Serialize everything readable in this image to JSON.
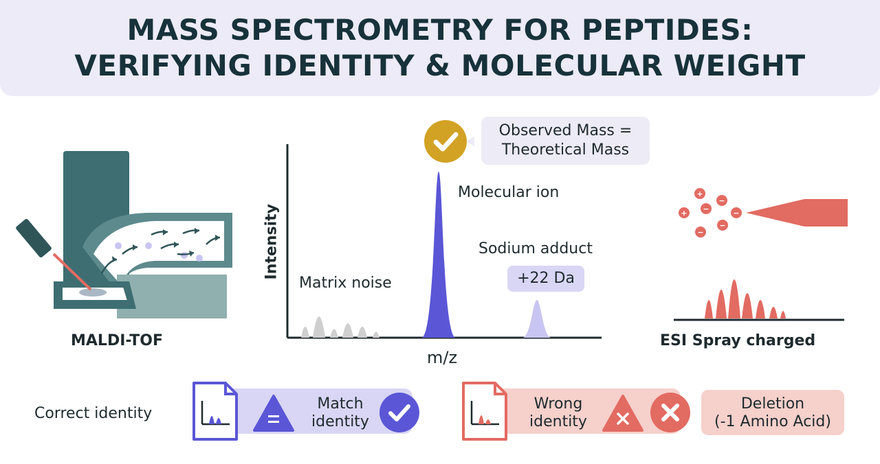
{
  "header": {
    "title_line1": "MASS SPECTROMETRY FOR PEPTIDES:",
    "title_line2": "VERIFYING IDENTITY & MOLECULAR WEIGHT"
  },
  "maldi": {
    "label": "MALDI-TOF"
  },
  "spectrum": {
    "y_axis_label": "Intensity",
    "x_axis_label": "m/z",
    "callout_line1": "Observed Mass =",
    "callout_line2": "Theoretical Mass",
    "peak_molecular_ion": "Molecular ion",
    "peak_sodium_adduct": "Sodium adduct",
    "sodium_shift": "+22 Da",
    "noise_label": "Matrix noise"
  },
  "esi": {
    "label": "ESI Spray charged"
  },
  "results": {
    "correct_label": "Correct identity",
    "match_line1": "Match",
    "match_line2": "identity",
    "wrong_line1": "Wrong",
    "wrong_line2": "identity",
    "deletion_line1": "Deletion",
    "deletion_line2": "(-1 Amino Acid)"
  },
  "colors": {
    "teal_dark": "#3e6e72",
    "teal_mid": "#7fa5a5",
    "purple": "#5a56d6",
    "purple_light": "#c9c5f2",
    "salmon": "#e26b62",
    "salmon_light": "#f6d0cb",
    "gold": "#d2a224",
    "noise_gray": "#cfcfcf"
  }
}
